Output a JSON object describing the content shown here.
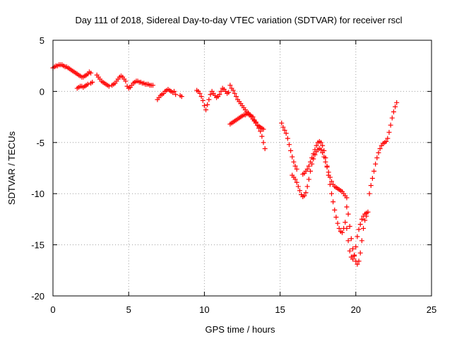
{
  "chart_data": {
    "type": "scatter",
    "title": "Day 111 of 2018, Sidereal Day-to-day VTEC variation (SDTVAR) for receiver rscl",
    "xlabel": "GPS time / hours",
    "ylabel": "SDTVAR / TECUs",
    "xlim": [
      0,
      25
    ],
    "ylim": [
      -20,
      5
    ],
    "xticks": [
      "0",
      "5",
      "10",
      "15",
      "20",
      "25"
    ],
    "yticks": [
      "5",
      "0",
      "-5",
      "-10",
      "-15",
      "-20"
    ],
    "grid": true,
    "marker": "plus",
    "color": "#ff0000",
    "series": [
      {
        "name": "SDTVAR",
        "x": [
          0.0,
          0.1,
          0.2,
          0.3,
          0.4,
          0.5,
          0.6,
          0.7,
          0.8,
          0.9,
          1.0,
          1.1,
          1.2,
          1.3,
          1.4,
          1.5,
          1.6,
          1.7,
          1.8,
          1.9,
          2.0,
          2.1,
          2.2,
          2.3,
          2.4,
          2.5,
          1.6,
          1.7,
          1.8,
          1.9,
          2.0,
          2.1,
          2.2,
          2.3,
          2.5,
          2.6,
          2.9,
          3.0,
          3.1,
          3.2,
          3.3,
          3.4,
          3.5,
          3.6,
          3.7,
          3.9,
          4.0,
          4.1,
          4.2,
          4.3,
          4.4,
          4.5,
          4.6,
          4.7,
          4.8,
          4.9,
          5.0,
          5.1,
          5.2,
          5.3,
          5.4,
          5.5,
          5.6,
          5.7,
          5.8,
          5.9,
          6.0,
          6.1,
          6.2,
          6.3,
          6.4,
          6.5,
          6.6,
          6.9,
          7.0,
          7.1,
          7.2,
          7.3,
          7.4,
          7.5,
          7.6,
          7.7,
          7.8,
          7.9,
          8.0,
          8.1,
          8.4,
          8.5,
          9.5,
          9.6,
          9.7,
          9.8,
          9.9,
          10.0,
          10.1,
          10.2,
          10.3,
          10.4,
          10.5,
          10.6,
          10.7,
          10.8,
          10.9,
          11.0,
          11.1,
          11.2,
          11.3,
          11.4,
          11.5,
          11.6,
          11.7,
          11.8,
          11.9,
          12.0,
          12.1,
          12.2,
          12.3,
          12.4,
          12.5,
          12.6,
          12.7,
          12.8,
          12.9,
          13.0,
          13.1,
          13.2,
          13.3,
          13.4,
          13.5,
          13.6,
          13.7,
          13.8,
          13.9,
          14.0,
          11.7,
          11.8,
          11.9,
          12.0,
          12.1,
          12.2,
          12.3,
          12.4,
          12.5,
          12.6,
          12.7,
          12.8,
          12.9,
          13.0,
          13.1,
          13.2,
          13.3,
          13.4,
          13.5,
          13.6,
          13.7,
          13.8,
          13.9,
          15.1,
          15.2,
          15.3,
          15.4,
          15.5,
          15.6,
          15.7,
          15.8,
          15.9,
          16.0,
          16.1,
          15.8,
          15.9,
          16.0,
          16.1,
          16.2,
          16.3,
          16.4,
          16.5,
          16.6,
          16.7,
          16.8,
          16.9,
          17.0,
          17.1,
          17.2,
          17.3,
          17.4,
          17.5,
          17.6,
          17.7,
          17.8,
          17.9,
          18.0,
          18.1,
          18.2,
          18.3,
          18.4,
          18.5,
          18.6,
          18.7,
          18.8,
          18.9,
          19.0,
          19.1,
          19.2,
          19.3,
          19.4,
          16.5,
          16.6,
          16.7,
          16.8,
          16.9,
          17.0,
          17.1,
          17.2,
          17.3,
          17.4,
          17.5,
          17.6,
          17.7,
          17.8,
          17.9,
          18.0,
          18.1,
          18.2,
          18.3,
          18.4,
          18.5,
          18.6,
          18.7,
          18.8,
          18.9,
          19.0,
          19.1,
          19.2,
          19.3,
          19.4,
          19.5,
          19.6,
          19.7,
          19.8,
          19.9,
          20.0,
          20.1,
          20.2,
          20.3,
          20.4,
          20.5,
          20.6,
          20.7,
          19.4,
          19.5,
          19.6,
          19.7,
          19.8,
          19.9,
          20.0,
          20.1,
          20.2,
          20.3,
          20.4,
          20.5,
          20.6,
          20.7,
          20.8,
          20.9,
          21.0,
          21.1,
          21.2,
          21.3,
          21.4,
          21.5,
          21.6,
          21.7,
          21.8,
          21.9,
          22.0,
          22.1,
          22.2,
          22.3,
          22.4,
          22.5,
          22.6,
          22.7
        ],
        "y": [
          2.3,
          2.4,
          2.5,
          2.5,
          2.6,
          2.6,
          2.6,
          2.5,
          2.4,
          2.4,
          2.3,
          2.2,
          2.1,
          2.0,
          1.9,
          1.8,
          1.7,
          1.6,
          1.5,
          1.4,
          1.4,
          1.5,
          1.6,
          1.7,
          1.9,
          1.8,
          0.3,
          0.4,
          0.5,
          0.5,
          0.4,
          0.5,
          0.6,
          0.7,
          0.8,
          0.9,
          1.6,
          1.4,
          1.2,
          1.0,
          0.9,
          0.8,
          0.7,
          0.6,
          0.5,
          0.6,
          0.7,
          0.8,
          1.0,
          1.2,
          1.4,
          1.5,
          1.4,
          1.2,
          1.0,
          0.5,
          0.3,
          0.4,
          0.6,
          0.8,
          0.9,
          1.0,
          1.0,
          0.9,
          0.9,
          0.8,
          0.8,
          0.7,
          0.7,
          0.7,
          0.6,
          0.6,
          0.6,
          -0.8,
          -0.6,
          -0.4,
          -0.3,
          -0.2,
          0.0,
          0.1,
          0.2,
          0.1,
          0.0,
          -0.1,
          0.0,
          -0.3,
          -0.4,
          -0.5,
          0.1,
          0.0,
          -0.2,
          -0.5,
          -0.9,
          -1.4,
          -1.8,
          -1.3,
          -0.8,
          -0.3,
          0.0,
          -0.2,
          -0.4,
          -0.6,
          -0.5,
          -0.3,
          0.0,
          0.3,
          0.2,
          0.0,
          -0.2,
          -0.1,
          0.6,
          0.3,
          0.1,
          -0.2,
          -0.5,
          -0.8,
          -1.0,
          -1.2,
          -1.4,
          -1.6,
          -1.8,
          -2.0,
          -2.1,
          -2.3,
          -2.4,
          -2.5,
          -2.8,
          -3.0,
          -3.3,
          -3.6,
          -3.9,
          -4.4,
          -5.0,
          -5.6,
          -3.2,
          -3.1,
          -3.0,
          -2.9,
          -2.8,
          -2.7,
          -2.6,
          -2.5,
          -2.4,
          -2.3,
          -2.3,
          -2.2,
          -2.2,
          -2.3,
          -2.5,
          -2.7,
          -2.9,
          -3.1,
          -3.3,
          -3.4,
          -3.5,
          -3.6,
          -3.7,
          -3.1,
          -3.5,
          -3.8,
          -4.1,
          -4.6,
          -5.2,
          -5.8,
          -6.4,
          -6.9,
          -7.3,
          -7.6,
          -8.2,
          -8.4,
          -8.6,
          -8.9,
          -9.3,
          -9.7,
          -10.1,
          -10.3,
          -10.2,
          -9.9,
          -9.3,
          -8.6,
          -7.8,
          -7.1,
          -6.6,
          -6.2,
          -5.9,
          -5.7,
          -5.6,
          -5.7,
          -6.0,
          -6.4,
          -6.9,
          -7.4,
          -7.9,
          -8.4,
          -8.8,
          -9.1,
          -9.3,
          -9.4,
          -9.5,
          -9.6,
          -9.7,
          -9.8,
          -10.0,
          -10.2,
          -10.4,
          -8.1,
          -8.0,
          -7.8,
          -7.6,
          -7.3,
          -6.9,
          -6.5,
          -6.1,
          -5.7,
          -5.3,
          -5.0,
          -4.9,
          -5.0,
          -5.3,
          -5.8,
          -6.5,
          -7.3,
          -8.2,
          -9.1,
          -10.0,
          -10.8,
          -11.6,
          -12.3,
          -12.9,
          -13.4,
          -13.7,
          -13.8,
          -13.4,
          -12.8,
          -13.4,
          -14.6,
          -15.6,
          -16.2,
          -16.4,
          -16.0,
          -15.2,
          -14.2,
          -13.5,
          -13.0,
          -12.5,
          -12.2,
          -12.0,
          -11.9,
          -11.3,
          -12.0,
          -13.2,
          -14.4,
          -15.4,
          -16.1,
          -16.6,
          -16.9,
          -16.6,
          -15.8,
          -14.6,
          -13.4,
          -12.6,
          -12.2,
          -11.8,
          -10.0,
          -9.2,
          -8.5,
          -7.8,
          -7.1,
          -6.5,
          -6.0,
          -5.6,
          -5.3,
          -5.1,
          -5.0,
          -4.9,
          -4.6,
          -4.0,
          -3.3,
          -2.6,
          -2.0,
          -1.5,
          -1.1
        ]
      }
    ]
  }
}
